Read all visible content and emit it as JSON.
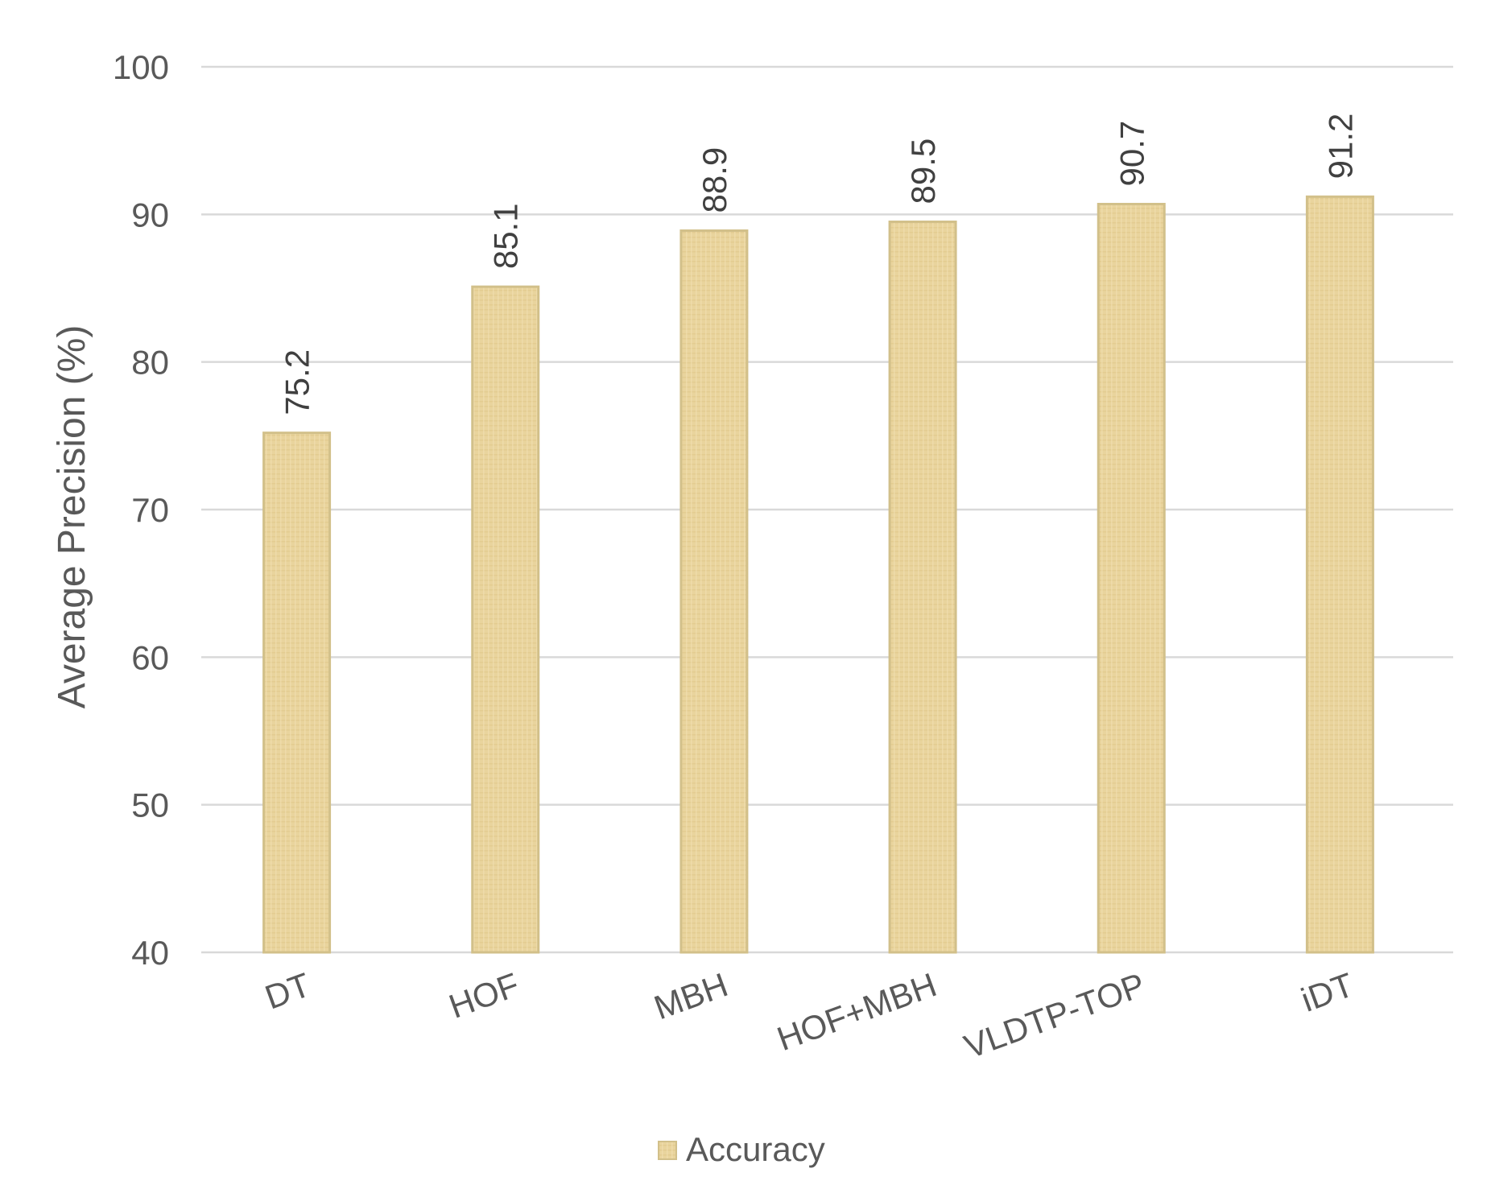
{
  "chart_data": {
    "type": "bar",
    "categories": [
      "DT",
      "HOF",
      "MBH",
      "HOF+MBH",
      "VLDTP-TOP",
      "iDT"
    ],
    "series": [
      {
        "name": "Accuracy",
        "values": [
          75.2,
          85.1,
          88.9,
          89.5,
          90.7,
          91.2
        ],
        "color": "#e8d29a"
      }
    ],
    "title": "",
    "xlabel": "",
    "ylabel": "Average Precision (%)",
    "ylim": [
      40,
      100
    ],
    "yticks": [
      40,
      50,
      60,
      70,
      80,
      90,
      100
    ],
    "grid": true,
    "legend_position": "bottom",
    "data_labels": [
      "75.2",
      "85.1",
      "88.9",
      "89.5",
      "90.7",
      "91.2"
    ]
  }
}
